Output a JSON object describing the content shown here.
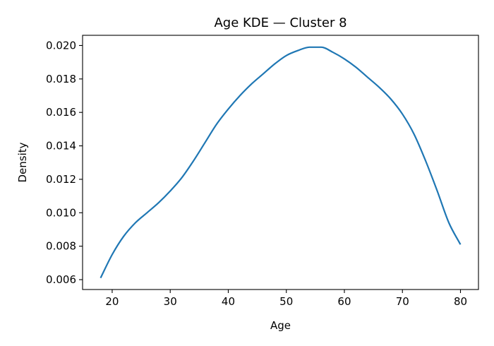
{
  "chart_data": {
    "type": "line",
    "title": "Age KDE — Cluster 8",
    "xlabel": "Age",
    "ylabel": "Density",
    "xlim": [
      14.9,
      83.1
    ],
    "ylim": [
      0.00541,
      0.02061
    ],
    "xticks": [
      20,
      30,
      40,
      50,
      60,
      70,
      80
    ],
    "yticks": [
      0.006,
      0.008,
      0.01,
      0.012,
      0.014,
      0.016,
      0.018,
      0.02
    ],
    "xtick_labels": [
      "20",
      "30",
      "40",
      "50",
      "60",
      "70",
      "80"
    ],
    "ytick_labels": [
      "0.006",
      "0.008",
      "0.010",
      "0.012",
      "0.014",
      "0.016",
      "0.018",
      "0.020"
    ],
    "grid": false,
    "series": [
      {
        "color": "#1f77b4",
        "x": [
          18,
          20,
          22,
          24,
          26,
          28,
          30,
          32,
          34,
          36,
          38,
          40,
          42,
          44,
          46,
          48,
          50,
          52,
          54,
          55,
          56,
          58,
          60,
          62,
          64,
          66,
          68,
          70,
          72,
          74,
          76,
          78,
          80
        ],
        "y": [
          0.0061,
          0.0075,
          0.0086,
          0.0094,
          0.01,
          0.0106,
          0.0113,
          0.0121,
          0.0131,
          0.0142,
          0.0153,
          0.0162,
          0.017,
          0.0177,
          0.0183,
          0.0189,
          0.0194,
          0.0197,
          0.0199,
          0.0199,
          0.0199,
          0.0196,
          0.0192,
          0.0187,
          0.0181,
          0.0175,
          0.0168,
          0.0159,
          0.0147,
          0.0131,
          0.0113,
          0.0094,
          0.0081
        ]
      }
    ]
  }
}
